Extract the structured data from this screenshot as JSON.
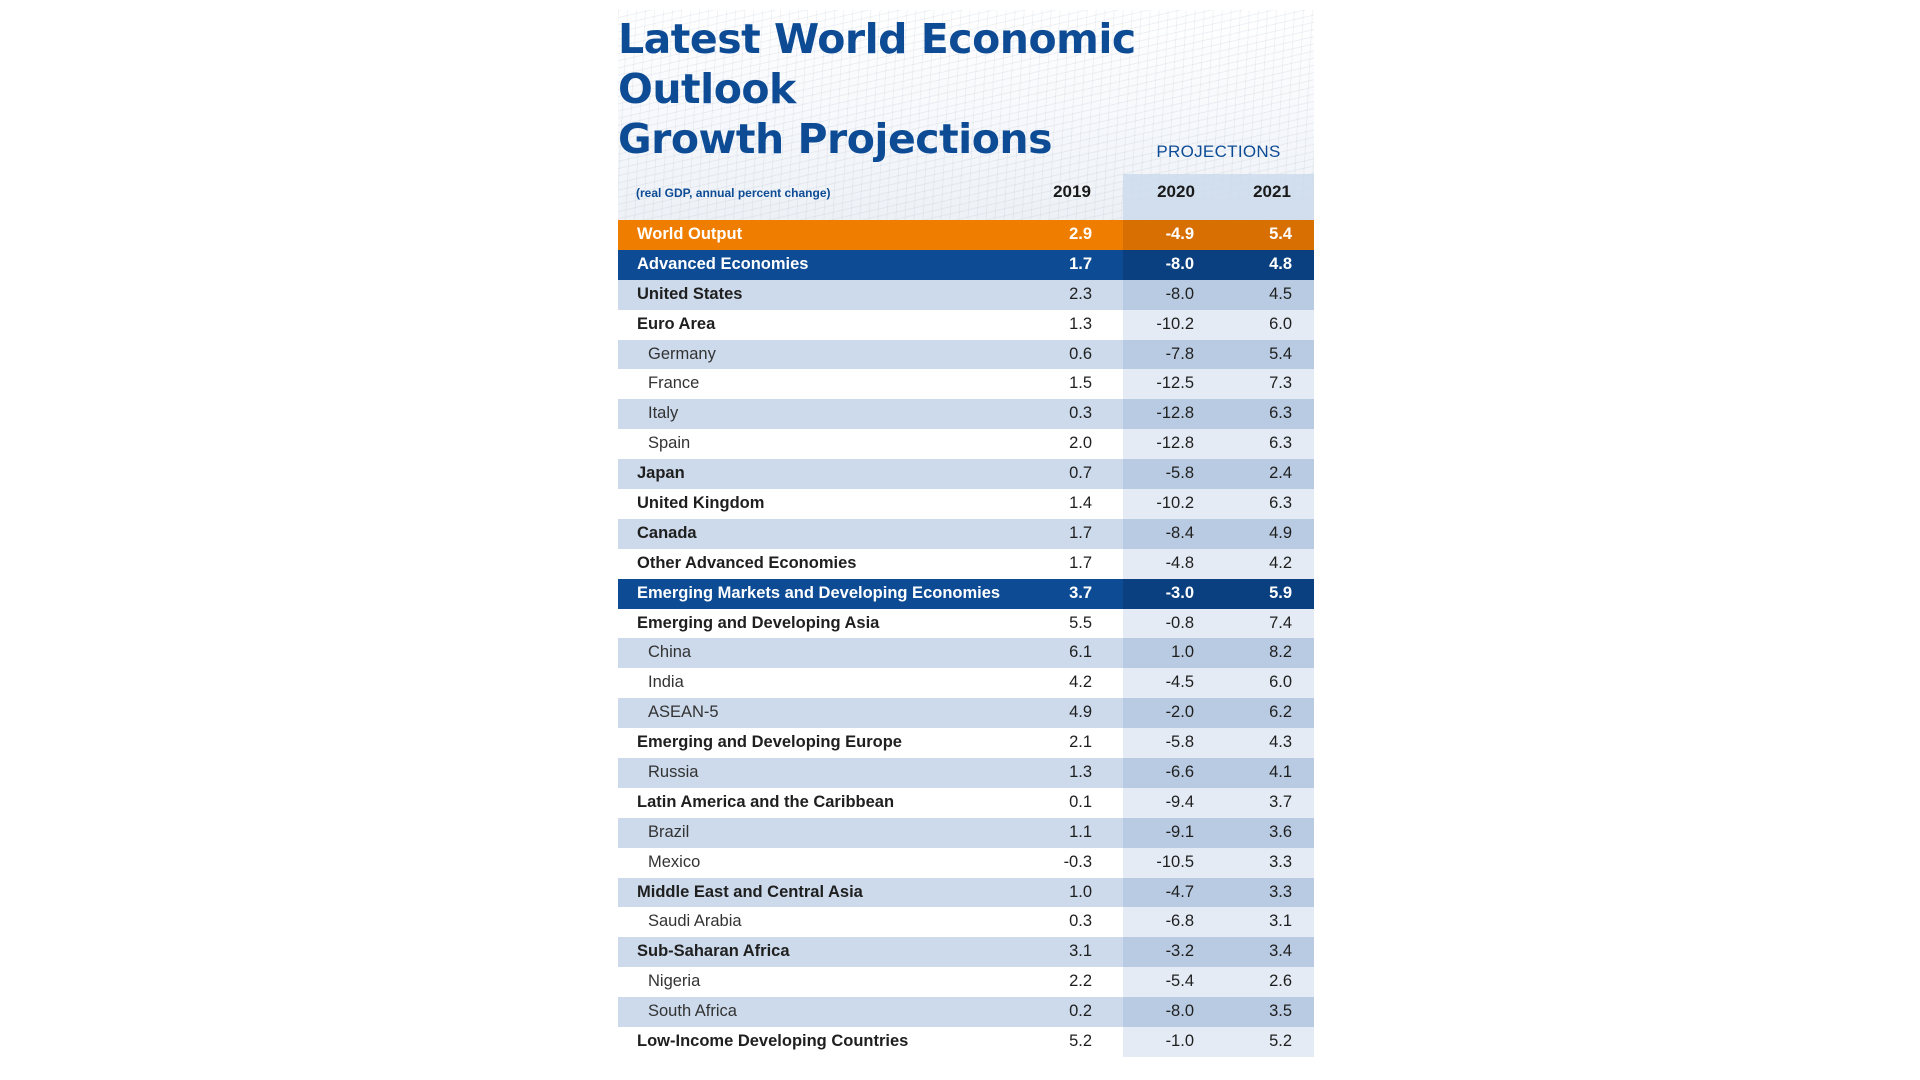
{
  "title": "Latest World Economic Outlook\nGrowth Projections",
  "subtitle": "(real GDP, annual percent change)",
  "projections_label": "PROJECTIONS",
  "chart_data": {
    "type": "table",
    "title": "Latest World Economic Outlook Growth Projections",
    "subtitle": "(real GDP, annual percent change)",
    "columns": [
      "2019",
      "2020",
      "2021"
    ],
    "projected_columns": [
      "2020",
      "2021"
    ],
    "rows": [
      {
        "label": "World Output",
        "style": "world",
        "values": [
          "2.9",
          "-4.9",
          "5.4"
        ]
      },
      {
        "label": "Advanced Economies",
        "style": "group",
        "values": [
          "1.7",
          "-8.0",
          "4.8"
        ]
      },
      {
        "label": "United States",
        "style": "bold",
        "values": [
          "2.3",
          "-8.0",
          "4.5"
        ]
      },
      {
        "label": "Euro Area",
        "style": "bold",
        "values": [
          "1.3",
          "-10.2",
          "6.0"
        ]
      },
      {
        "label": "Germany",
        "style": "sub",
        "values": [
          "0.6",
          "-7.8",
          "5.4"
        ]
      },
      {
        "label": "France",
        "style": "sub",
        "values": [
          "1.5",
          "-12.5",
          "7.3"
        ]
      },
      {
        "label": "Italy",
        "style": "sub",
        "values": [
          "0.3",
          "-12.8",
          "6.3"
        ]
      },
      {
        "label": "Spain",
        "style": "sub",
        "values": [
          "2.0",
          "-12.8",
          "6.3"
        ]
      },
      {
        "label": "Japan",
        "style": "bold",
        "values": [
          "0.7",
          "-5.8",
          "2.4"
        ]
      },
      {
        "label": "United Kingdom",
        "style": "bold",
        "values": [
          "1.4",
          "-10.2",
          "6.3"
        ]
      },
      {
        "label": "Canada",
        "style": "bold",
        "values": [
          "1.7",
          "-8.4",
          "4.9"
        ]
      },
      {
        "label": "Other Advanced Economies",
        "style": "bold",
        "values": [
          "1.7",
          "-4.8",
          "4.2"
        ]
      },
      {
        "label": "Emerging Markets and Developing Economies",
        "style": "group",
        "values": [
          "3.7",
          "-3.0",
          "5.9"
        ]
      },
      {
        "label": "Emerging and Developing Asia",
        "style": "bold",
        "values": [
          "5.5",
          "-0.8",
          "7.4"
        ]
      },
      {
        "label": "China",
        "style": "sub",
        "values": [
          "6.1",
          "1.0",
          "8.2"
        ]
      },
      {
        "label": "India",
        "style": "sub",
        "values": [
          "4.2",
          "-4.5",
          "6.0"
        ]
      },
      {
        "label": "ASEAN-5",
        "style": "sub",
        "values": [
          "4.9",
          "-2.0",
          "6.2"
        ]
      },
      {
        "label": "Emerging and Developing Europe",
        "style": "bold",
        "values": [
          "2.1",
          "-5.8",
          "4.3"
        ]
      },
      {
        "label": "Russia",
        "style": "sub",
        "values": [
          "1.3",
          "-6.6",
          "4.1"
        ]
      },
      {
        "label": "Latin America and the Caribbean",
        "style": "bold",
        "values": [
          "0.1",
          "-9.4",
          "3.7"
        ]
      },
      {
        "label": "Brazil",
        "style": "sub",
        "values": [
          "1.1",
          "-9.1",
          "3.6"
        ]
      },
      {
        "label": "Mexico",
        "style": "sub",
        "values": [
          "-0.3",
          "-10.5",
          "3.3"
        ]
      },
      {
        "label": "Middle East and Central Asia",
        "style": "bold",
        "values": [
          "1.0",
          "-4.7",
          "3.3"
        ]
      },
      {
        "label": "Saudi Arabia",
        "style": "sub",
        "values": [
          "0.3",
          "-6.8",
          "3.1"
        ]
      },
      {
        "label": "Sub-Saharan Africa",
        "style": "bold",
        "values": [
          "3.1",
          "-3.2",
          "3.4"
        ]
      },
      {
        "label": "Nigeria",
        "style": "sub",
        "values": [
          "2.2",
          "-5.4",
          "2.6"
        ]
      },
      {
        "label": "South Africa",
        "style": "sub",
        "values": [
          "0.2",
          "-8.0",
          "3.5"
        ]
      },
      {
        "label": "Low-Income Developing Countries",
        "style": "bold",
        "values": [
          "5.2",
          "-1.0",
          "5.2"
        ]
      }
    ]
  },
  "colors": {
    "title": "#0d4c95",
    "world_row": "#ef7d00",
    "group_row": "#0d4c95",
    "shaded_row": "#ccdaeb"
  }
}
